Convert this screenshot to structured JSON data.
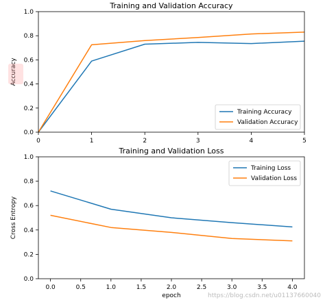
{
  "chart_data": [
    {
      "type": "line",
      "title": "Training and Validation Accuracy",
      "xlabel": "",
      "ylabel": "Accuracy",
      "xlim": [
        0,
        5
      ],
      "ylim": [
        0,
        1.0
      ],
      "x": [
        0,
        1,
        2,
        3,
        4,
        5
      ],
      "xticks": [
        0,
        1,
        2,
        3,
        4,
        5
      ],
      "xtick_labels": [
        "0",
        "1",
        "2",
        "3",
        "4",
        "5"
      ],
      "yticks": [
        0,
        0.2,
        0.4,
        0.6,
        0.8,
        1.0
      ],
      "ytick_labels": [
        "0.0",
        "0.2",
        "0.4",
        "0.6",
        "0.8",
        "1.0"
      ],
      "series": [
        {
          "name": "Training Accuracy",
          "color": "#1f77b4",
          "values": [
            0.0,
            0.59,
            0.73,
            0.745,
            0.735,
            0.755
          ]
        },
        {
          "name": "Validation Accuracy",
          "color": "#ff7f0e",
          "values": [
            0.0,
            0.725,
            0.76,
            0.785,
            0.815,
            0.83
          ]
        }
      ],
      "grid": false,
      "legend_position": "lower-right"
    },
    {
      "type": "line",
      "title": "Training and Validation Loss",
      "xlabel": "epoch",
      "ylabel": "Cross Entropy",
      "xlim": [
        -0.2,
        4.2
      ],
      "ylim": [
        0,
        1.0
      ],
      "x": [
        0,
        1,
        2,
        3,
        4
      ],
      "xticks": [
        0.0,
        0.5,
        1.0,
        1.5,
        2.0,
        2.5,
        3.0,
        3.5,
        4.0
      ],
      "xtick_labels": [
        "0.0",
        "0.5",
        "1.0",
        "1.5",
        "2.0",
        "2.5",
        "3.0",
        "3.5",
        "4.0"
      ],
      "yticks": [
        0,
        0.2,
        0.4,
        0.6,
        0.8,
        1.0
      ],
      "ytick_labels": [
        "0.0",
        "0.2",
        "0.4",
        "0.6",
        "0.8",
        "1.0"
      ],
      "series": [
        {
          "name": "Training Loss",
          "color": "#1f77b4",
          "values": [
            0.72,
            0.57,
            0.5,
            0.46,
            0.425
          ]
        },
        {
          "name": "Validation Loss",
          "color": "#ff7f0e",
          "values": [
            0.52,
            0.42,
            0.38,
            0.33,
            0.31
          ]
        }
      ],
      "grid": false,
      "legend_position": "upper-right"
    }
  ],
  "watermark": "https://blog.csdn.net/u01137660040"
}
